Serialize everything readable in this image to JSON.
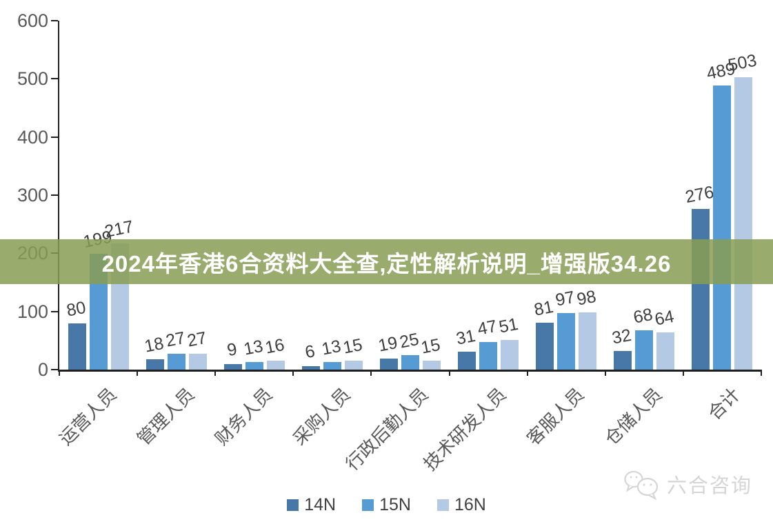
{
  "banner": {
    "text": "2024年香港6合资料大全查,定性解析说明_增强版34.26",
    "bg_color": "#889E54",
    "bg_opacity": 0.85,
    "text_color": "#FFFFFF"
  },
  "chart_data": {
    "type": "bar",
    "title": "",
    "xlabel": "",
    "ylabel": "",
    "categories": [
      "运营人员",
      "管理人员",
      "财务人员",
      "采购人员",
      "行政后勤人员",
      "技术研发人员",
      "客服人员",
      "仓储人员",
      "合计"
    ],
    "series": [
      {
        "name": "14N",
        "color": "#4878A8",
        "values": [
          80,
          18,
          9,
          6,
          19,
          31,
          81,
          32,
          276
        ]
      },
      {
        "name": "15N",
        "color": "#579BD5",
        "values": [
          199,
          27,
          13,
          13,
          25,
          47,
          97,
          68,
          489
        ]
      },
      {
        "name": "16N",
        "color": "#B3C9E4",
        "values": [
          217,
          27,
          16,
          15,
          15,
          51,
          98,
          64,
          503
        ]
      }
    ],
    "ylim": [
      0,
      600
    ],
    "yticks": [
      0,
      100,
      200,
      300,
      400,
      500,
      600
    ],
    "grid": false,
    "data_labels": true,
    "legend_position": "bottom",
    "axis_color": "#1F1F1F",
    "tick_label_color": "#595959",
    "data_label_color": "#3F3F3F"
  },
  "watermark": {
    "text": "六合咨询",
    "icon": "chat-bubbles-icon",
    "color": "#D5D5D5"
  }
}
